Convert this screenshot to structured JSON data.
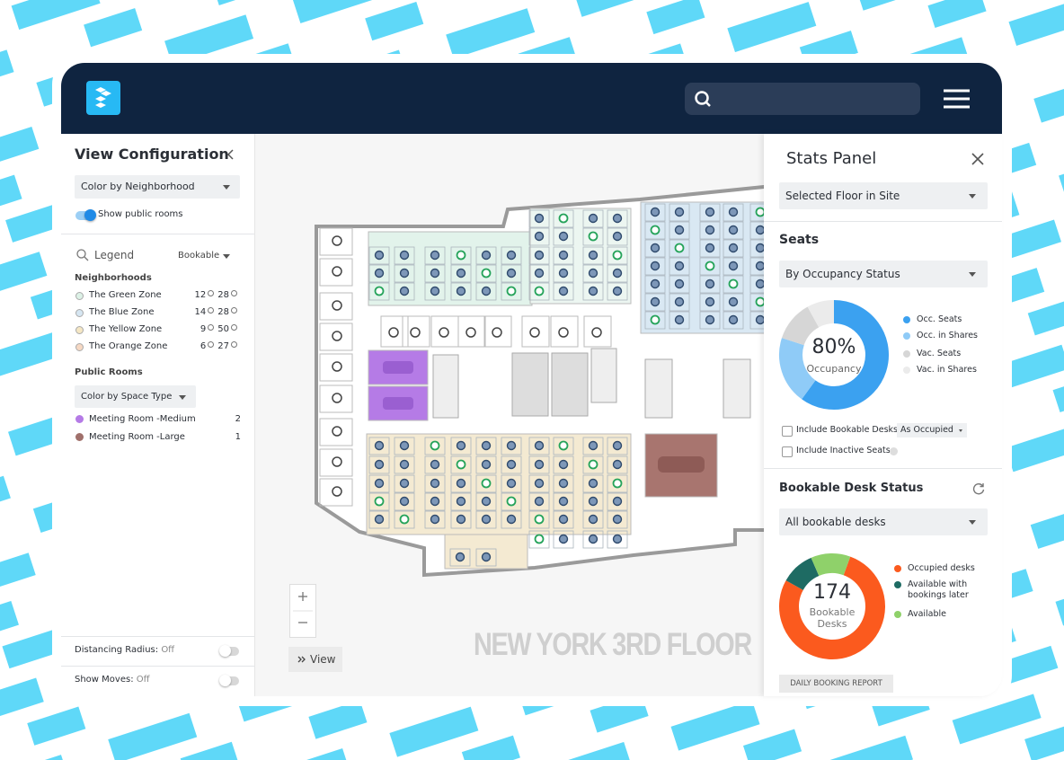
{
  "left_panel": {
    "title": "View Configuration",
    "color_by": "Color by Neighborhood",
    "public_rooms_toggle": "Show public rooms",
    "legend_label": "Legend",
    "legend_filter": "Bookable",
    "neighborhoods_heading": "Neighborhoods",
    "neighborhoods": [
      {
        "name": "The Green Zone",
        "color": "#dcf1e6",
        "available": 12,
        "total": 28
      },
      {
        "name": "The Blue Zone",
        "color": "#d6e6f2",
        "available": 14,
        "total": 28
      },
      {
        "name": "The Yellow Zone",
        "color": "#f5e7c4",
        "available": 9,
        "total": 50
      },
      {
        "name": "The Orange Zone",
        "color": "#f6d8c3",
        "available": 6,
        "total": 27
      }
    ],
    "public_rooms_heading": "Public Rooms",
    "space_color_by": "Color by Space Type",
    "rooms": [
      {
        "name": "Meeting Room -Medium",
        "color": "#b57be6",
        "count": 2
      },
      {
        "name": "Meeting Room -Large",
        "color": "#a0706b",
        "count": 1
      }
    ],
    "distancing_label": "Distancing Radius:",
    "distancing_value": "Off",
    "moves_label": "Show Moves:",
    "moves_value": "Off"
  },
  "map": {
    "floor_name": "NEW YORK 3RD FLOOR",
    "view_button": "View"
  },
  "stats_panel": {
    "title": "Stats Panel",
    "scope": "Selected Floor in Site",
    "seats_heading": "Seats",
    "seats_grouping": "By Occupancy Status",
    "occupancy": {
      "value": 80,
      "label": "80%"
    },
    "occupancy_label": "Occupancy",
    "seat_segments": [
      {
        "name": "Occ. Seats",
        "color": "#3ba1f0",
        "value": 60
      },
      {
        "name": "Occ. in Shares",
        "color": "#8fcbf7",
        "value": 20
      },
      {
        "name": "Vac. Seats",
        "color": "#d6d6d6",
        "value": 12
      },
      {
        "name": "Vac. in Shares",
        "color": "#ebebeb",
        "value": 8
      }
    ],
    "include_bookable": "Include Bookable Desks",
    "include_bookable_mode": "As Occupied",
    "include_inactive": "Include Inactive Seats",
    "bookable_heading": "Bookable Desk Status",
    "bookable_filter": "All bookable desks",
    "bookable_total": 174,
    "bookable_total_label": "Bookable Desks",
    "bookable_segments": [
      {
        "name": "Occupied desks",
        "color": "#fb5a1e",
        "value": 135
      },
      {
        "name": "Available with bookings later",
        "color": "#1e6b63",
        "value": 18
      },
      {
        "name": "Available",
        "color": "#8fd16a",
        "value": 21
      }
    ],
    "report_button": "DAILY BOOKING REPORT"
  }
}
